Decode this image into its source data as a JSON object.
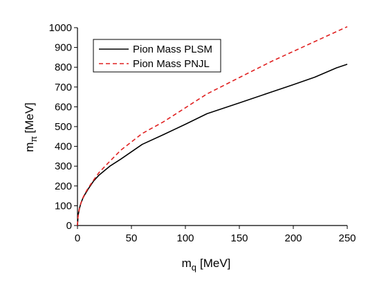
{
  "chart_data": {
    "type": "line",
    "title": "",
    "xlabel_main": "m",
    "xlabel_sub": "q",
    "xlabel_unit": "[MeV]",
    "ylabel_main": "m",
    "ylabel_sub": "π",
    "ylabel_unit": "[MeV]",
    "xlim": [
      0,
      250
    ],
    "ylim": [
      0,
      1000
    ],
    "xticks": [
      0,
      50,
      100,
      150,
      200,
      250
    ],
    "yticks": [
      0,
      100,
      200,
      300,
      400,
      500,
      600,
      700,
      800,
      900,
      1000
    ],
    "grid": false,
    "legend_position": "top-left",
    "series": [
      {
        "name": "Pion Mass PLSM",
        "color": "#000000",
        "dash": "solid",
        "x": [
          0,
          0.5,
          1,
          2,
          3,
          5,
          7,
          10,
          15,
          20,
          30,
          40,
          60,
          80,
          100,
          120,
          150,
          180,
          200,
          220,
          240,
          250
        ],
        "y": [
          0,
          45,
          65,
          90,
          110,
          138,
          158,
          185,
          225,
          255,
          300,
          335,
          410,
          460,
          512,
          565,
          620,
          675,
          712,
          750,
          797,
          815
        ]
      },
      {
        "name": "Pion Mass PNJL",
        "color": "#e02020",
        "dash": "dashed",
        "x": [
          0,
          0.5,
          1,
          2,
          3,
          5,
          7,
          10,
          15,
          20,
          30,
          40,
          60,
          80,
          100,
          120,
          150,
          180,
          200,
          220,
          240,
          250
        ],
        "y": [
          0,
          45,
          65,
          90,
          110,
          140,
          162,
          190,
          230,
          268,
          325,
          380,
          465,
          525,
          595,
          665,
          748,
          830,
          880,
          930,
          980,
          1005
        ]
      }
    ]
  }
}
